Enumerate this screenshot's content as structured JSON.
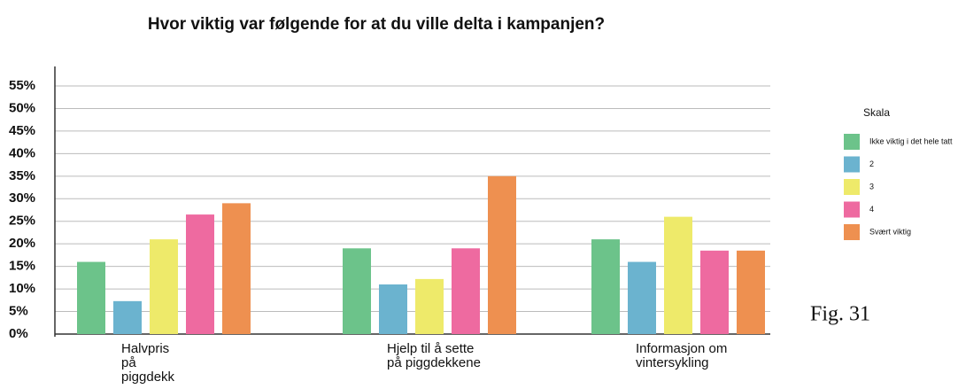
{
  "chart_data": {
    "type": "bar",
    "title": "Hvor viktig var følgende for at du ville delta i kampanjen?",
    "categories": [
      [
        "Halvpris",
        "på",
        "piggdekk"
      ],
      [
        "Hjelp til å sette",
        "på piggdekkene"
      ],
      [
        "Informasjon om",
        "vintersykling"
      ]
    ],
    "legend_title": "Skala",
    "series": [
      {
        "name": "Ikke viktig i det hele tatt",
        "color": "#6cc38a",
        "values": [
          16,
          19,
          21
        ]
      },
      {
        "name": "2",
        "color": "#6bb3cf",
        "values": [
          7.3,
          11,
          16
        ]
      },
      {
        "name": "3",
        "color": "#eeea6a",
        "values": [
          21,
          12.2,
          26
        ]
      },
      {
        "name": "4",
        "color": "#ee6aa0",
        "values": [
          26.5,
          19,
          18.5
        ]
      },
      {
        "name": "Svært viktig",
        "color": "#ee9050",
        "values": [
          29,
          35,
          18.5
        ]
      }
    ],
    "ylim": [
      0,
      55
    ],
    "yticks": [
      {
        "value": 0,
        "label": "0%"
      },
      {
        "value": 5,
        "label": "5%"
      },
      {
        "value": 10,
        "label": "10%"
      },
      {
        "value": 15,
        "label": "15%"
      },
      {
        "value": 20,
        "label": "20%"
      },
      {
        "value": 25,
        "label": "25%"
      },
      {
        "value": 30,
        "label": "30%"
      },
      {
        "value": 35,
        "label": "35%"
      },
      {
        "value": 40,
        "label": "40%"
      },
      {
        "value": 45,
        "label": "45%"
      },
      {
        "value": 50,
        "label": "50%"
      },
      {
        "value": 55,
        "label": "55%"
      }
    ],
    "grid": true,
    "annotation": "Fig. 31"
  }
}
